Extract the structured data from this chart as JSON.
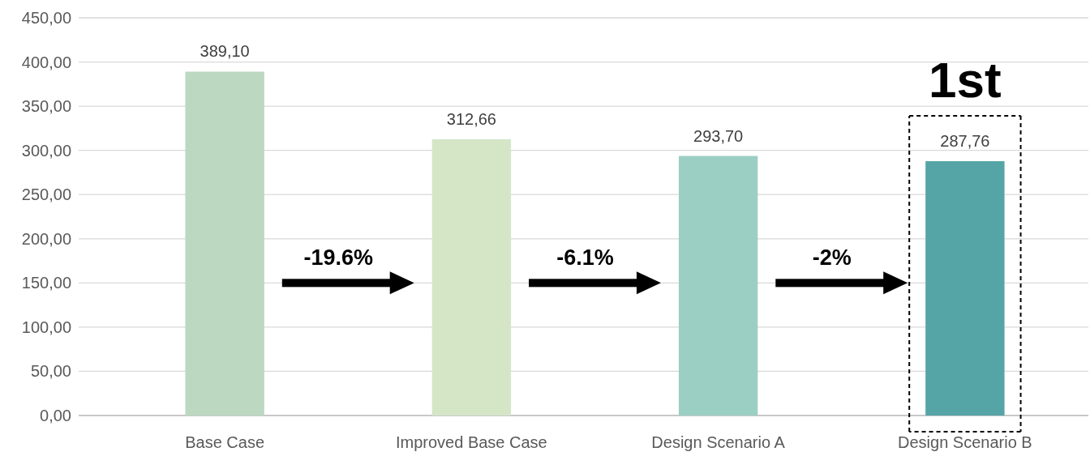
{
  "chart_data": {
    "type": "bar",
    "categories": [
      "Base Case",
      "Improved Base Case",
      "Design Scenario A",
      "Design Scenario B"
    ],
    "values": [
      389.1,
      312.66,
      293.7,
      287.76
    ],
    "colors": [
      "#bcd8c1",
      "#d5e6c7",
      "#9ccfc4",
      "#55a4a6"
    ],
    "value_labels": [
      "389,10",
      "312,66",
      "293,70",
      "287,76"
    ],
    "ylim": [
      0,
      450
    ],
    "yticks": [
      {
        "value": 0,
        "label": "0,00"
      },
      {
        "value": 50,
        "label": "50,00"
      },
      {
        "value": 100,
        "label": "100,00"
      },
      {
        "value": 150,
        "label": "150,00"
      },
      {
        "value": 200,
        "label": "200,00"
      },
      {
        "value": 250,
        "label": "250,00"
      },
      {
        "value": 300,
        "label": "300,00"
      },
      {
        "value": 350,
        "label": "350,00"
      },
      {
        "value": 400,
        "label": "400,00"
      },
      {
        "value": 450,
        "label": "450,00"
      }
    ],
    "grid": "y",
    "annotations": [
      "-19.6%",
      "-6.1%",
      "-2%",
      "1st"
    ]
  }
}
